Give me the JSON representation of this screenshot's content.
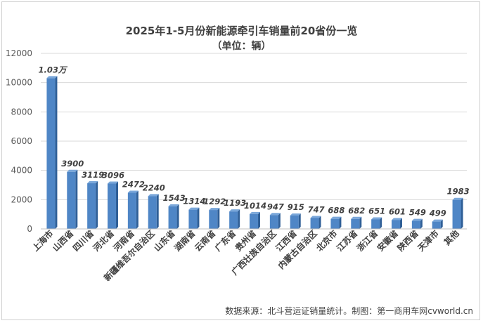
{
  "title": "2025年1-5月份新能源牵引车销量前20省份一览",
  "subtitle": "（单位：辆）",
  "source": "数据来源：北斗营运证销量统计。制图：第一商用车网cvworld.cn",
  "colors": {
    "bar": "#4f86c6",
    "bar_dark": "#2f5f97",
    "grid": "#d9d9d9",
    "text": "#404040"
  },
  "chart_data": {
    "type": "bar",
    "title": "2025年1-5月份新能源牵引车销量前20省份一览",
    "subtitle": "（单位：辆）",
    "categories": [
      "上海市",
      "山西省",
      "四川省",
      "河北省",
      "河南省",
      "新疆维吾尔自治区",
      "山东省",
      "湖南省",
      "云南省",
      "广东省",
      "贵州省",
      "广西壮族自治区",
      "江西省",
      "内蒙古自治区",
      "北京市",
      "江苏省",
      "浙江省",
      "安徽省",
      "陕西省",
      "天津市",
      "其他"
    ],
    "values": [
      10300,
      3900,
      3119,
      3096,
      2472,
      2240,
      1543,
      1314,
      1292,
      1193,
      1014,
      947,
      915,
      747,
      688,
      682,
      651,
      601,
      549,
      499,
      1983
    ],
    "data_labels": [
      "1.03万",
      "3900",
      "3119",
      "3096",
      "2472",
      "2240",
      "1543",
      "1314",
      "1292",
      "1193",
      "1014",
      "947",
      "915",
      "747",
      "688",
      "682",
      "651",
      "601",
      "549",
      "499",
      "1983"
    ],
    "yticks": [
      "0",
      "2000",
      "4000",
      "6000",
      "8000",
      "10000",
      "12000"
    ],
    "ylim": [
      0,
      12000
    ],
    "grid": true,
    "legend": "none"
  }
}
